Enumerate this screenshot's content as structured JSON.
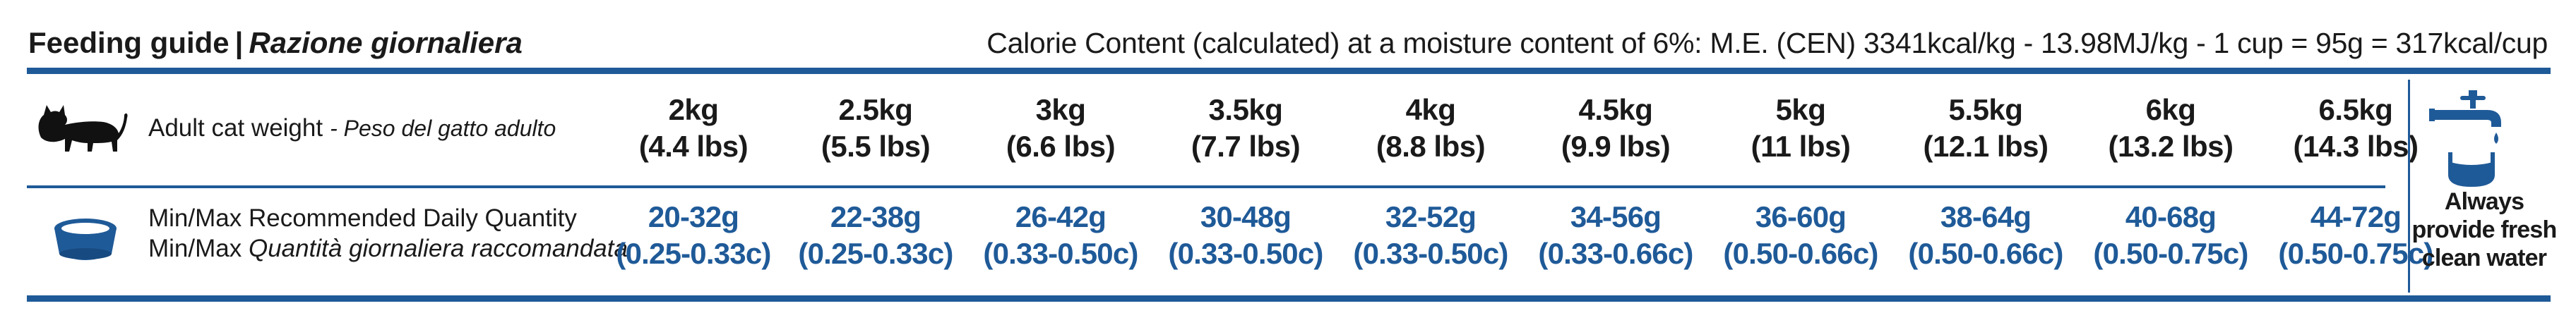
{
  "header": {
    "title_en": "Feeding guide",
    "title_sep": "|",
    "title_it": "Razione giornaliera",
    "calorie_text": "Calorie Content (calculated) at a moisture content of 6%: M.E. (CEN) 3341kcal/kg - 13.98MJ/kg - 1 cup = 95g = 317kcal/cup"
  },
  "rows": {
    "weight_label_en": "Adult cat weight",
    "weight_label_it": "- Peso del gatto adulto",
    "quantity_label_en": "Min/Max Recommended Daily Quantity",
    "quantity_label_it_prefix": "Min/Max",
    "quantity_label_it": "Quantità giornaliera raccomandata"
  },
  "weights": [
    {
      "kg": "2kg",
      "lbs": "(4.4 lbs)"
    },
    {
      "kg": "2.5kg",
      "lbs": "(5.5 lbs)"
    },
    {
      "kg": "3kg",
      "lbs": "(6.6 lbs)"
    },
    {
      "kg": "3.5kg",
      "lbs": "(7.7 lbs)"
    },
    {
      "kg": "4kg",
      "lbs": "(8.8 lbs)"
    },
    {
      "kg": "4.5kg",
      "lbs": "(9.9 lbs)"
    },
    {
      "kg": "5kg",
      "lbs": "(11 lbs)"
    },
    {
      "kg": "5.5kg",
      "lbs": "(12.1 lbs)"
    },
    {
      "kg": "6kg",
      "lbs": "(13.2 lbs)"
    },
    {
      "kg": "6.5kg",
      "lbs": "(14.3 lbs)"
    }
  ],
  "quantities": [
    {
      "grams": "20-32g",
      "cups": "(0.25-0.33c)"
    },
    {
      "grams": "22-38g",
      "cups": "(0.25-0.33c)"
    },
    {
      "grams": "26-42g",
      "cups": "(0.33-0.50c)"
    },
    {
      "grams": "30-48g",
      "cups": "(0.33-0.50c)"
    },
    {
      "grams": "32-52g",
      "cups": "(0.33-0.50c)"
    },
    {
      "grams": "34-56g",
      "cups": "(0.33-0.66c)"
    },
    {
      "grams": "36-60g",
      "cups": "(0.50-0.66c)"
    },
    {
      "grams": "38-64g",
      "cups": "(0.50-0.66c)"
    },
    {
      "grams": "40-68g",
      "cups": "(0.50-0.75c)"
    },
    {
      "grams": "44-72g",
      "cups": "(0.50-0.75c)"
    }
  ],
  "water_note": [
    "Always",
    "provide fresh",
    "clean water"
  ],
  "icons": {
    "cat": "cat-icon",
    "bowl": "food-bowl-icon",
    "water": "water-tap-icon"
  },
  "colors": {
    "accent": "#1f5a98",
    "text": "#1a1a1a",
    "background": "#ffffff"
  }
}
